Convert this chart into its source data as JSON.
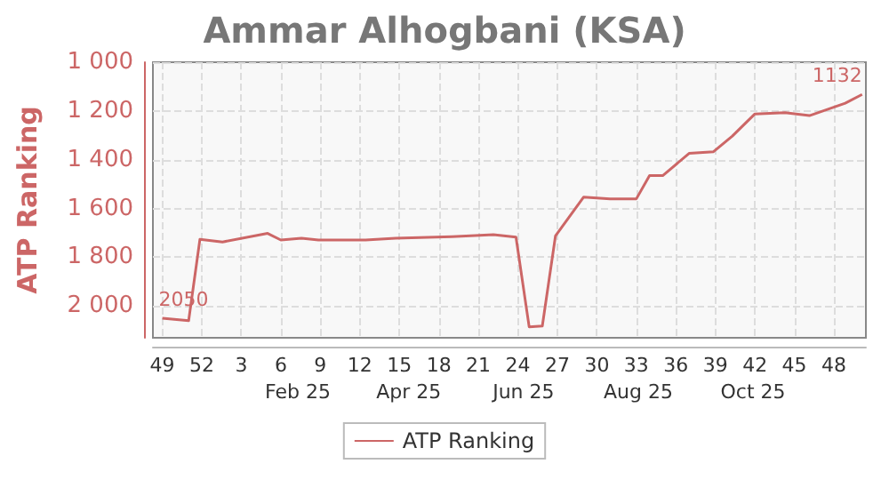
{
  "chart_data": {
    "type": "line",
    "title": "Ammar Alhogbani (KSA)",
    "ylabel": "ATP Ranking",
    "xlim": [
      "2024-11-30",
      "2025-12-14"
    ],
    "xticks": [
      {
        "value": "2024-12-05",
        "label": "49"
      },
      {
        "value": "2024-12-26",
        "label": "52"
      },
      {
        "value": "2025-01-16",
        "label": "3"
      },
      {
        "value": "2025-02-06",
        "label": "6"
      },
      {
        "value": "2025-02-27",
        "label": "9"
      },
      {
        "value": "2025-03-20",
        "label": "12"
      },
      {
        "value": "2025-04-10",
        "label": "15"
      },
      {
        "value": "2025-05-01",
        "label": "18"
      },
      {
        "value": "2025-05-22",
        "label": "21"
      },
      {
        "value": "2025-06-12",
        "label": "24"
      },
      {
        "value": "2025-07-03",
        "label": "27"
      },
      {
        "value": "2025-07-24",
        "label": "30"
      },
      {
        "value": "2025-08-14",
        "label": "33"
      },
      {
        "value": "2025-09-04",
        "label": "36"
      },
      {
        "value": "2025-09-25",
        "label": "39"
      },
      {
        "value": "2025-10-16",
        "label": "42"
      },
      {
        "value": "2025-11-06",
        "label": "45"
      },
      {
        "value": "2025-11-27",
        "label": "48"
      }
    ],
    "x2lim": [
      "2024-11-30",
      "2025-12-14"
    ],
    "x2ticks": [
      {
        "value": "2025-02-15",
        "label": "Feb 25"
      },
      {
        "value": "2025-04-15",
        "label": "Apr 25"
      },
      {
        "value": "2025-06-15",
        "label": "Jun 25"
      },
      {
        "value": "2025-08-15",
        "label": "Aug 25"
      },
      {
        "value": "2025-10-15",
        "label": "Oct 25"
      }
    ],
    "ylim": [
      2130,
      1000
    ],
    "yticks": [
      {
        "value": 1000,
        "label": "1 000"
      },
      {
        "value": 1200,
        "label": "1 200"
      },
      {
        "value": 1400,
        "label": "1 400"
      },
      {
        "value": 1600,
        "label": "1 600"
      },
      {
        "value": 1800,
        "label": "1 800"
      },
      {
        "value": 2000,
        "label": "2 000"
      }
    ],
    "x": [
      "2024-12-05",
      "2024-12-19",
      "2024-12-25",
      "2025-01-06",
      "2025-01-30",
      "2025-02-06",
      "2025-02-17",
      "2025-02-26",
      "2025-03-23",
      "2025-04-08",
      "2025-05-08",
      "2025-05-30",
      "2025-06-11",
      "2025-06-18",
      "2025-06-25",
      "2025-07-02",
      "2025-07-17",
      "2025-07-31",
      "2025-08-14",
      "2025-08-21",
      "2025-08-28",
      "2025-09-11",
      "2025-09-24",
      "2025-10-04",
      "2025-10-16",
      "2025-11-01",
      "2025-11-14",
      "2025-12-03",
      "2025-12-12"
    ],
    "series": [
      {
        "name": "ATP Ranking",
        "color": "#cc6666",
        "values": [
          2050,
          2060,
          1726,
          1737,
          1702,
          1729,
          1722,
          1729,
          1729,
          1722,
          1715,
          1707,
          1717,
          2085,
          2082,
          1712,
          1553,
          1560,
          1560,
          1465,
          1465,
          1374,
          1367,
          1303,
          1212,
          1207,
          1219,
          1168,
          1132
        ],
        "value_labels": [
          "2050",
          null,
          null,
          null,
          null,
          null,
          null,
          null,
          null,
          null,
          null,
          null,
          null,
          null,
          null,
          null,
          null,
          null,
          null,
          null,
          null,
          null,
          null,
          null,
          null,
          null,
          null,
          null,
          "1132"
        ]
      }
    ],
    "grid": true,
    "legend": "bottom",
    "marker": "none",
    "line_style": "solid"
  }
}
